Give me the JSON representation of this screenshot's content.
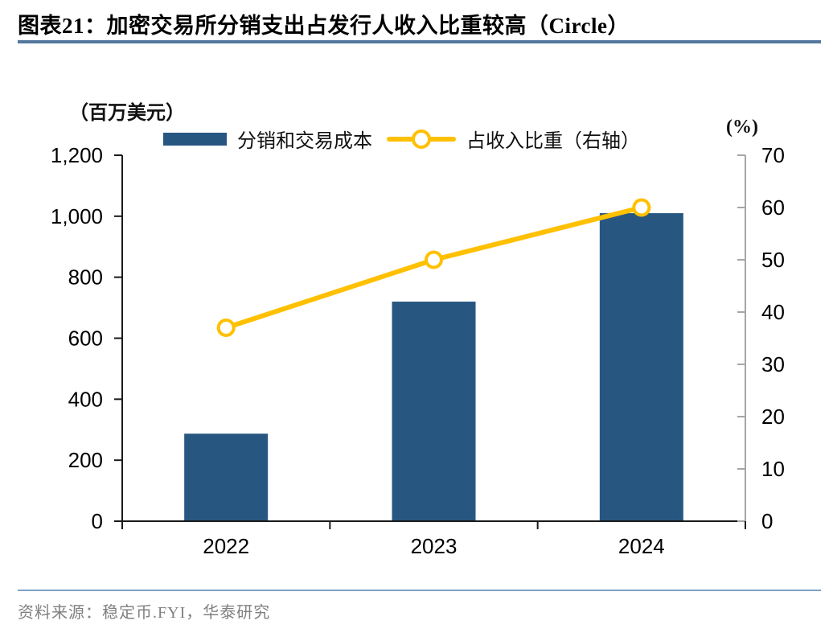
{
  "header": {
    "title": "图表21：加密交易所分销支出占发行人收入比重较高（Circle）"
  },
  "chart_data": {
    "type": "bar",
    "combo": "bar+line, dual axis",
    "title": "加密交易所分销支出占发行人收入比重较高（Circle）",
    "categories": [
      "2022",
      "2023",
      "2024"
    ],
    "series": [
      {
        "name": "分销和交易成本",
        "type": "bar",
        "axis": "left",
        "values": [
          287,
          720,
          1010
        ],
        "color": "#275781"
      },
      {
        "name": "占收入比重（右轴）",
        "type": "line",
        "axis": "right",
        "values": [
          37,
          50,
          60
        ],
        "color": "#FFC000",
        "marker": "open-circle"
      }
    ],
    "left_axis": {
      "unit": "（百万美元）",
      "min": 0,
      "max": 1200,
      "step": 200
    },
    "right_axis": {
      "unit": "(%)",
      "min": 0,
      "max": 70,
      "step": 10
    },
    "legend_position": "top",
    "grid": false
  },
  "footer": {
    "source": "资料来源：稳定币.FYI，华泰研究"
  },
  "colors": {
    "bar": "#275781",
    "line": "#FFC000",
    "marker_fill": "#FFFFFF",
    "axis": "#1A1A1A",
    "right_axis": "#A6A6A6",
    "title_rule": "#54779E",
    "footer_rule": "#7FA3C6",
    "source_text": "#808080"
  }
}
